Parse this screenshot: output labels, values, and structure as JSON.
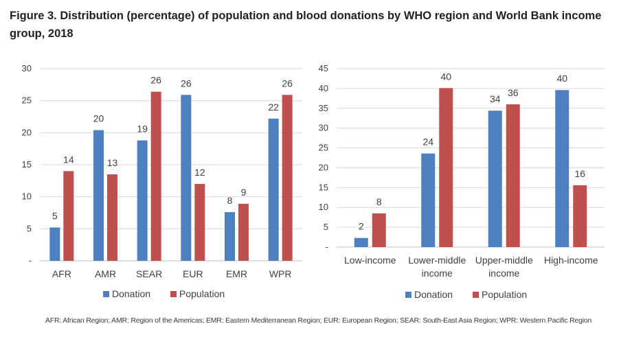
{
  "title": "Figure 3. Distribution (percentage) of population and blood donations by WHO region and World Bank income group, 2018",
  "footnote": "AFR: African Region; AMR: Region of the Americas; EMR: Eastern Mediterranean Region; EUR: European Region; SEAR: South-East Asia Region; WPR: Western Pacific Region",
  "colors": {
    "donation": "#4e7fc1",
    "population": "#c0504d",
    "grid": "#d9d9d9",
    "text": "#404040"
  },
  "chart_data": [
    {
      "type": "bar",
      "title": "",
      "xlabel": "",
      "ylabel": "",
      "ylim": [
        0,
        30
      ],
      "yticks": [
        0,
        5,
        10,
        15,
        20,
        25,
        30
      ],
      "ytick_labels": [
        "-",
        "5",
        "10",
        "15",
        "20",
        "25",
        "30"
      ],
      "categories": [
        [
          "AFR"
        ],
        [
          "AMR"
        ],
        [
          "SEAR"
        ],
        [
          "EUR"
        ],
        [
          "EMR"
        ],
        [
          "WPR"
        ]
      ],
      "series": [
        {
          "name": "Donation",
          "values": [
            5.2,
            20.4,
            18.8,
            25.9,
            7.6,
            22.2
          ],
          "labels": [
            "5",
            "20",
            "19",
            "26",
            "8",
            "22"
          ]
        },
        {
          "name": "Population",
          "values": [
            14.0,
            13.5,
            26.4,
            12.0,
            8.9,
            25.9
          ],
          "labels": [
            "14",
            "13",
            "26",
            "12",
            "9",
            "26"
          ]
        }
      ],
      "legend": "bottom"
    },
    {
      "type": "bar",
      "title": "",
      "xlabel": "",
      "ylabel": "",
      "ylim": [
        0,
        45
      ],
      "yticks": [
        0,
        5,
        10,
        15,
        20,
        25,
        30,
        35,
        40,
        45
      ],
      "ytick_labels": [
        "-",
        "5",
        "10",
        "15",
        "20",
        "25",
        "30",
        "35",
        "40",
        "45"
      ],
      "categories": [
        [
          "Low-income"
        ],
        [
          "Lower-middle",
          "income"
        ],
        [
          "Upper-middle",
          "income"
        ],
        [
          "High-income"
        ]
      ],
      "series": [
        {
          "name": "Donation",
          "values": [
            2.3,
            23.6,
            34.4,
            39.6
          ],
          "labels": [
            "2",
            "24",
            "34",
            "40"
          ]
        },
        {
          "name": "Population",
          "values": [
            8.5,
            40.1,
            36.0,
            15.6
          ],
          "labels": [
            "8",
            "40",
            "36",
            "16"
          ]
        }
      ],
      "legend": "bottom"
    }
  ]
}
